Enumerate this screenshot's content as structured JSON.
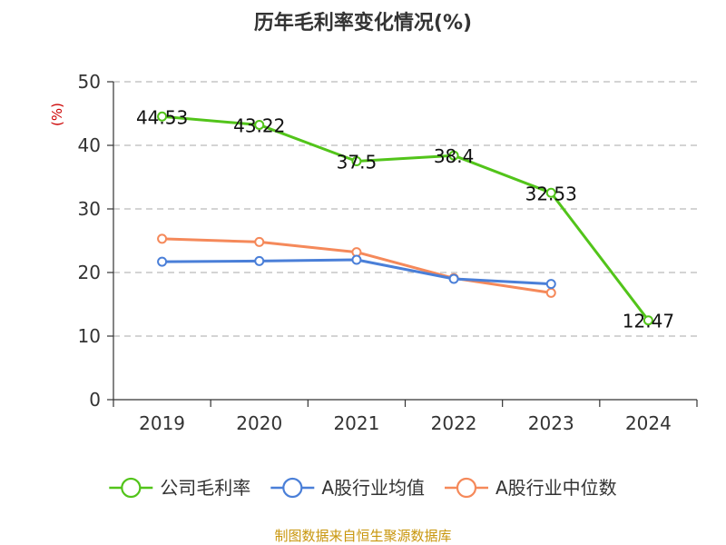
{
  "chart_data": {
    "type": "line",
    "title": "历年毛利率变化情况(%)",
    "ylabel": "(%)",
    "xlabel": "",
    "categories": [
      "2019",
      "2020",
      "2021",
      "2022",
      "2023",
      "2024"
    ],
    "ylim": [
      0,
      50
    ],
    "yticks": [
      0,
      10,
      20,
      30,
      40,
      50
    ],
    "grid": true,
    "legend_position": "bottom",
    "series": [
      {
        "name": "公司毛利率",
        "color": "#52c41a",
        "values": [
          44.53,
          43.22,
          37.5,
          38.4,
          32.53,
          12.47
        ],
        "labels": [
          "44.53",
          "43.22",
          "37.5",
          "38.4",
          "32.53",
          "12.47"
        ]
      },
      {
        "name": "A股行业均值",
        "color": "#4a7fd8",
        "values": [
          21.7,
          21.8,
          22.0,
          19.0,
          18.2,
          null
        ]
      },
      {
        "name": "A股行业中位数",
        "color": "#f5895a",
        "values": [
          25.3,
          24.8,
          23.2,
          19.1,
          16.8,
          null
        ]
      }
    ]
  },
  "footer": {
    "source": "制图数据来自恒生聚源数据库"
  }
}
